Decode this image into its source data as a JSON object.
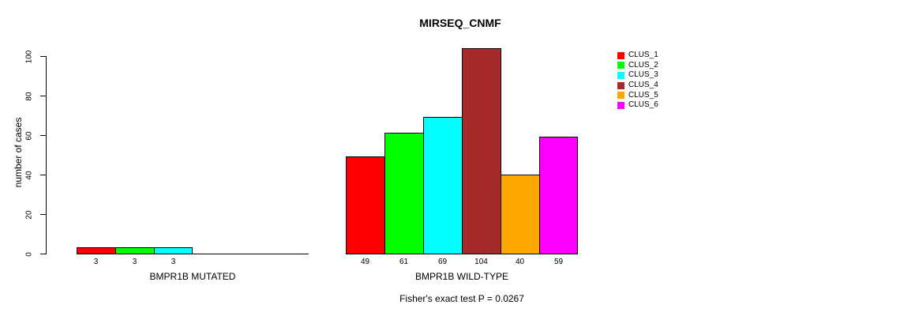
{
  "chart_data": {
    "type": "bar",
    "title": "MIRSEQ_CNMF",
    "ylabel": "number of cases",
    "ylim": [
      0,
      100
    ],
    "yticks": [
      0,
      20,
      40,
      60,
      80,
      100
    ],
    "grid": false,
    "legend_position": "right",
    "clusters": [
      {
        "name": "CLUS_1",
        "color": "#FF0000"
      },
      {
        "name": "CLUS_2",
        "color": "#00FF00"
      },
      {
        "name": "CLUS_3",
        "color": "#00FFFF"
      },
      {
        "name": "CLUS_4",
        "color": "#A52A2A"
      },
      {
        "name": "CLUS_5",
        "color": "#FFA500"
      },
      {
        "name": "CLUS_6",
        "color": "#FF00FF"
      }
    ],
    "groups": [
      {
        "label": "BMPR1B MUTATED",
        "bars": [
          {
            "cluster": "CLUS_1",
            "value": 3
          },
          {
            "cluster": "CLUS_2",
            "value": 3
          },
          {
            "cluster": "CLUS_3",
            "value": 3
          }
        ]
      },
      {
        "label": "BMPR1B WILD-TYPE",
        "bars": [
          {
            "cluster": "CLUS_1",
            "value": 49
          },
          {
            "cluster": "CLUS_2",
            "value": 61
          },
          {
            "cluster": "CLUS_3",
            "value": 69
          },
          {
            "cluster": "CLUS_4",
            "value": 104
          },
          {
            "cluster": "CLUS_5",
            "value": 40
          },
          {
            "cluster": "CLUS_6",
            "value": 59
          }
        ]
      }
    ],
    "annotation": "Fisher's exact test P = 0.0267"
  }
}
